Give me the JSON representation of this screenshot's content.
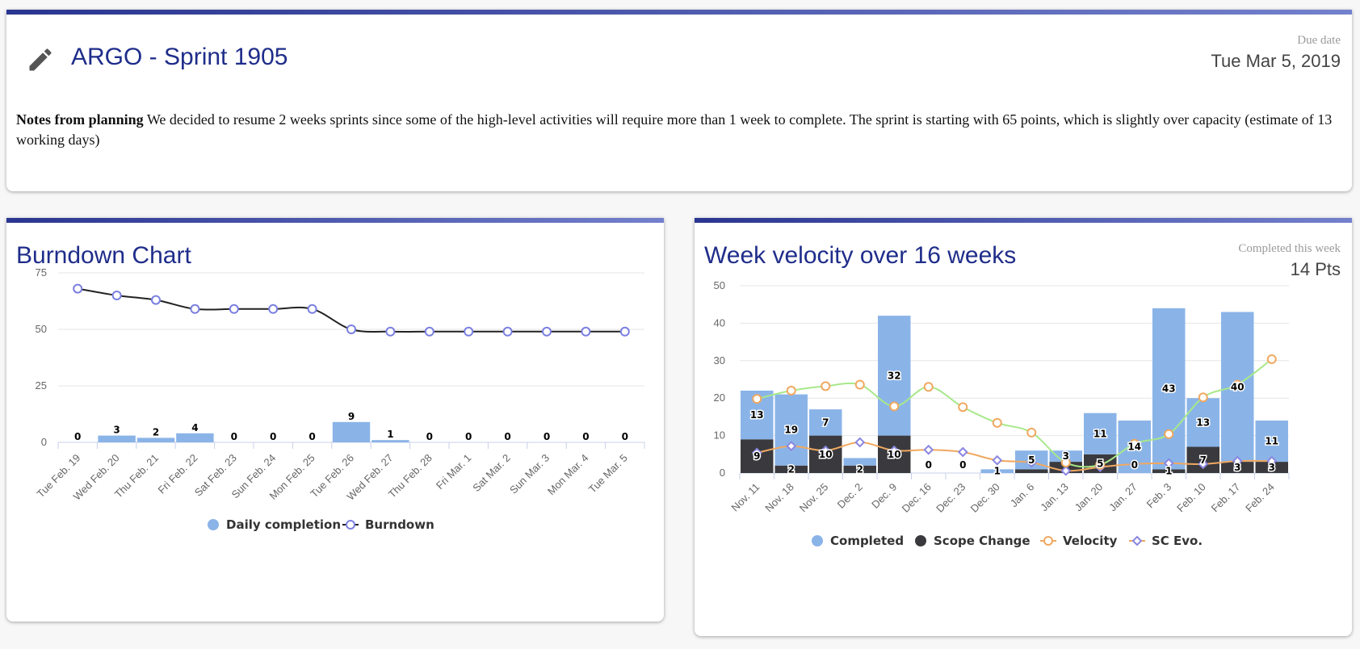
{
  "sprint": {
    "title": "ARGO - Sprint 1905",
    "due_label": "Due date",
    "due_value": "Tue Mar 5, 2019",
    "notes_bold": "Notes from planning",
    "notes_text": " We decided to resume 2 weeks sprints since some of the high-level activities will require more than 1 week to complete. The sprint is starting with 65 points, which is slightly over capacity (estimate of 13 working days)"
  },
  "burndown": {
    "title": "Burndown Chart"
  },
  "velocity": {
    "title": "Week velocity over 16 weeks",
    "completed_label": "Completed this week",
    "completed_value": "14 Pts"
  },
  "colors": {
    "accent": "#1f2d8a",
    "bar_blue": "#8ab4e8",
    "scope_dark": "#3a3a3e",
    "burndown_line": "#222222",
    "burndown_marker": "#7a7fe0",
    "velocity_line": "#f0a860",
    "sc_evo_line": "#f0a860",
    "sc_evo_marker": "#8a86e0",
    "trend_green": "#a8e88a"
  },
  "chart_data": [
    {
      "id": "burndown",
      "type": "bar",
      "title": "Burndown Chart",
      "categories": [
        "Tue Feb. 19",
        "Wed Feb. 20",
        "Thu Feb. 21",
        "Fri Feb. 22",
        "Sat Feb. 23",
        "Sun Feb. 24",
        "Mon Feb. 25",
        "Tue Feb. 26",
        "Wed Feb. 27",
        "Thu Feb. 28",
        "Fri Mar. 1",
        "Sat Mar. 2",
        "Sun Mar. 3",
        "Mon Mar. 4",
        "Tue Mar. 5"
      ],
      "ylim": [
        0,
        75
      ],
      "yticks": [
        0,
        25,
        50,
        75
      ],
      "series": [
        {
          "name": "Daily completion",
          "kind": "bar",
          "values": [
            0,
            3,
            2,
            4,
            0,
            0,
            0,
            9,
            1,
            0,
            0,
            0,
            0,
            0,
            0
          ]
        },
        {
          "name": "Burndown",
          "kind": "line",
          "values": [
            68,
            65,
            63,
            59,
            59,
            59,
            59,
            50,
            49,
            49,
            49,
            49,
            49,
            49,
            49
          ]
        }
      ],
      "legend": [
        "Daily completion",
        "Burndown"
      ]
    },
    {
      "id": "velocity",
      "type": "bar",
      "title": "Week velocity over 16 weeks",
      "categories": [
        "Nov. 11",
        "Nov. 18",
        "Nov. 25",
        "Dec. 2",
        "Dec. 9",
        "Dec. 16",
        "Dec. 23",
        "Dec. 30",
        "Jan. 6",
        "Jan. 13",
        "Jan. 20",
        "Jan. 27",
        "Feb. 3",
        "Feb. 10",
        "Feb. 17",
        "Feb. 24"
      ],
      "ylim": [
        0,
        50
      ],
      "yticks": [
        0,
        10,
        20,
        30,
        40,
        50
      ],
      "series": [
        {
          "name": "Completed",
          "kind": "stacked_bar",
          "values": [
            13,
            19,
            7,
            2,
            32,
            0,
            0,
            1,
            5,
            3,
            11,
            14,
            43,
            13,
            40,
            11
          ]
        },
        {
          "name": "Scope Change",
          "kind": "stacked_bar",
          "values": [
            9,
            2,
            10,
            2,
            10,
            0,
            0,
            0,
            1,
            3,
            5,
            0,
            1,
            7,
            3,
            3
          ]
        },
        {
          "name": "Velocity",
          "kind": "line",
          "values": [
            19.8,
            22,
            23.2,
            23.6,
            17.8,
            23,
            17.6,
            13.4,
            10.8,
            2.8,
            2.2,
            7.8,
            10.4,
            20.2,
            23.6,
            30.4
          ]
        },
        {
          "name": "SC Evo.",
          "kind": "line",
          "values": [
            5.4,
            7.2,
            6,
            8.2,
            6,
            6.2,
            5.6,
            3.4,
            2.8,
            0.6,
            1.6,
            2.4,
            2.6,
            2.4,
            3.2,
            3.2
          ]
        },
        {
          "name": "trend",
          "kind": "trend",
          "values": [
            19.8,
            22,
            23.2,
            23.6,
            17.8,
            23,
            17.6,
            13.4,
            10.8,
            2.8,
            2.2,
            7.8,
            10.4,
            20.2,
            23.6,
            30.4
          ]
        }
      ],
      "labels": [
        {
          "bar": "Completed",
          "text": [
            "13",
            "19",
            "7",
            "",
            "32",
            "",
            "",
            "1",
            "5",
            "3",
            "11",
            "14",
            "43",
            "13",
            "40",
            "11"
          ]
        },
        {
          "bar": "Scope Change",
          "text": [
            "9",
            "2",
            "10",
            "2",
            "10",
            "0",
            "0",
            "",
            "",
            "",
            "5",
            "0",
            "1",
            "7",
            "3",
            "3"
          ]
        }
      ],
      "legend": [
        "Completed",
        "Scope Change",
        "Velocity",
        "SC Evo."
      ]
    }
  ]
}
